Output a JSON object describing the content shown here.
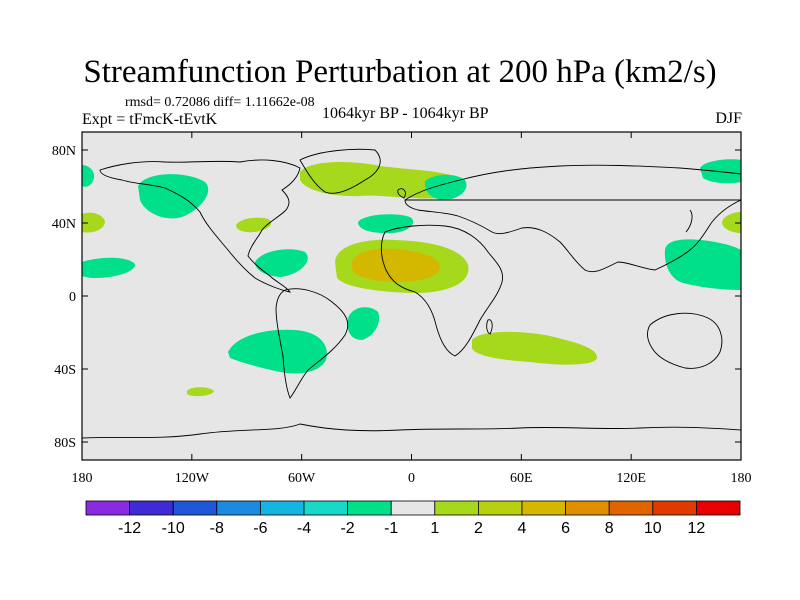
{
  "title": "Streamfunction Perturbation at 200 hPa (km2/s)",
  "stats_line": "rmsd= 0.72086 diff= 1.11662e-08",
  "experiment": "Expt = tFmcK-tEvtK",
  "period": "1064kyr BP - 1064kyr BP",
  "season": "DJF",
  "map": {
    "lon_ticks": [
      "180",
      "120W",
      "60W",
      "0",
      "60E",
      "120E",
      "180"
    ],
    "lat_ticks": [
      "80N",
      "40N",
      "0",
      "40S",
      "80S"
    ],
    "background_color": "#e6e6e6"
  },
  "colorbar": {
    "colors": [
      "#8a2be2",
      "#3f2bd6",
      "#1f57d8",
      "#1c8ae0",
      "#16b4e0",
      "#18d8c8",
      "#00e08a",
      "#e6e6e6",
      "#a6d81c",
      "#b8d010",
      "#d4b800",
      "#e08f00",
      "#e06400",
      "#e03a00",
      "#e60000"
    ],
    "labels": [
      "-12",
      "-10",
      "-8",
      "-6",
      "-4",
      "-2",
      "-1",
      "1",
      "2",
      "4",
      "6",
      "8",
      "10",
      "12"
    ]
  },
  "anomaly_regions": [
    {
      "name": "n-atlantic-greenland",
      "level": 2,
      "color": "#a6d81c"
    },
    {
      "name": "tropical-atlantic-africa",
      "level": 2,
      "color": "#a6d81c"
    },
    {
      "name": "tropical-atlantic-core",
      "level": 4,
      "color": "#d4b800"
    },
    {
      "name": "s-africa-indian",
      "level": 2,
      "color": "#a6d81c"
    },
    {
      "name": "n-pacific",
      "level": -1,
      "color": "#00e08a"
    },
    {
      "name": "s-atlantic-argentina",
      "level": -1,
      "color": "#00e08a"
    },
    {
      "name": "w-pacific-tropics",
      "level": -1,
      "color": "#00e08a"
    }
  ]
}
